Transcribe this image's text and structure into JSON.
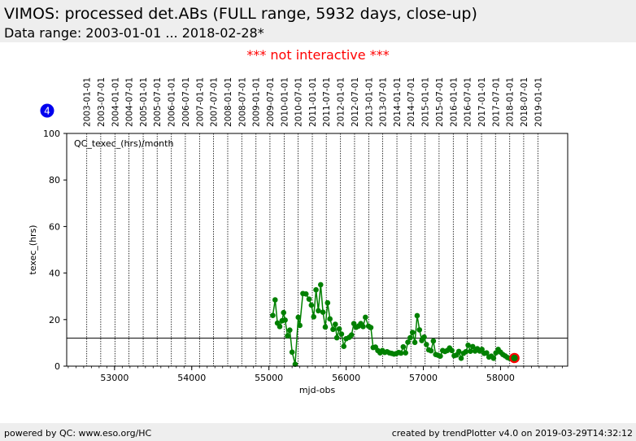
{
  "header": {
    "title": "VIMOS: processed det.ABs (FULL range, 5932 days, close-up)",
    "subtitle": "Data range: 2003-01-01 ... 2018-02-28*"
  },
  "notice": {
    "text": "*** not interactive ***",
    "color": "#ff0000"
  },
  "footer": {
    "left": "powered by QC: www.eso.org/HC",
    "right": "created by trendPlotter v4.0 on 2019-03-29T14:32:12"
  },
  "badge": {
    "text": "4",
    "color": "#0000ee"
  },
  "chart_data": {
    "type": "line",
    "plot_label": "QC_texec_(hrs)/month",
    "xlabel": "mjd-obs",
    "ylabel": "texec_(hrs)",
    "xlim": [
      52380,
      58870
    ],
    "ylim": [
      0,
      100
    ],
    "x_ticks": [
      53000,
      54000,
      55000,
      56000,
      57000,
      58000
    ],
    "y_ticks": [
      0,
      20,
      40,
      60,
      80,
      100
    ],
    "reference_line_y": 12,
    "date_markers": [
      {
        "label": "2003-01-01",
        "mjd": 52640
      },
      {
        "label": "2003-07-01",
        "mjd": 52821
      },
      {
        "label": "2004-01-01",
        "mjd": 53005
      },
      {
        "label": "2004-07-01",
        "mjd": 53187
      },
      {
        "label": "2005-01-01",
        "mjd": 53371
      },
      {
        "label": "2005-07-01",
        "mjd": 53552
      },
      {
        "label": "2006-01-01",
        "mjd": 53736
      },
      {
        "label": "2006-07-01",
        "mjd": 53917
      },
      {
        "label": "2007-01-01",
        "mjd": 54101
      },
      {
        "label": "2007-07-01",
        "mjd": 54282
      },
      {
        "label": "2008-01-01",
        "mjd": 54466
      },
      {
        "label": "2008-07-01",
        "mjd": 54648
      },
      {
        "label": "2009-01-01",
        "mjd": 54832
      },
      {
        "label": "2009-07-01",
        "mjd": 55013
      },
      {
        "label": "2010-01-01",
        "mjd": 55197
      },
      {
        "label": "2010-07-01",
        "mjd": 55378
      },
      {
        "label": "2011-01-01",
        "mjd": 55562
      },
      {
        "label": "2011-07-01",
        "mjd": 55743
      },
      {
        "label": "2012-01-01",
        "mjd": 55927
      },
      {
        "label": "2012-07-01",
        "mjd": 56109
      },
      {
        "label": "2013-01-01",
        "mjd": 56293
      },
      {
        "label": "2013-07-01",
        "mjd": 56474
      },
      {
        "label": "2014-01-01",
        "mjd": 56658
      },
      {
        "label": "2014-07-01",
        "mjd": 56839
      },
      {
        "label": "2015-01-01",
        "mjd": 57023
      },
      {
        "label": "2015-07-01",
        "mjd": 57204
      },
      {
        "label": "2016-01-01",
        "mjd": 57388
      },
      {
        "label": "2016-07-01",
        "mjd": 57570
      },
      {
        "label": "2017-01-01",
        "mjd": 57754
      },
      {
        "label": "2017-07-01",
        "mjd": 57935
      },
      {
        "label": "2018-01-01",
        "mjd": 58119
      },
      {
        "label": "2018-07-01",
        "mjd": 58300
      },
      {
        "label": "2019-01-01",
        "mjd": 58484
      }
    ],
    "series": [
      {
        "color": "#008000",
        "points": [
          [
            55050,
            21.8
          ],
          [
            55080,
            28.5
          ],
          [
            55110,
            18.5
          ],
          [
            55140,
            17.0
          ],
          [
            55170,
            19.5
          ],
          [
            55190,
            23.0
          ],
          [
            55210,
            19.8
          ],
          [
            55240,
            13.0
          ],
          [
            55270,
            15.5
          ],
          [
            55300,
            6.0
          ],
          [
            55340,
            0.8
          ],
          [
            55380,
            21.0
          ],
          [
            55400,
            17.5
          ],
          [
            55440,
            31.2
          ],
          [
            55480,
            31.0
          ],
          [
            55520,
            28.8
          ],
          [
            55550,
            26.2
          ],
          [
            55580,
            21.2
          ],
          [
            55610,
            32.8
          ],
          [
            55640,
            23.8
          ],
          [
            55670,
            35.0
          ],
          [
            55700,
            23.2
          ],
          [
            55730,
            16.8
          ],
          [
            55760,
            27.2
          ],
          [
            55790,
            20.3
          ],
          [
            55830,
            15.8
          ],
          [
            55860,
            18.0
          ],
          [
            55880,
            12.2
          ],
          [
            55910,
            16.0
          ],
          [
            55940,
            13.8
          ],
          [
            55970,
            8.5
          ],
          [
            56000,
            11.8
          ],
          [
            56040,
            12.4
          ],
          [
            56070,
            13.4
          ],
          [
            56100,
            18.3
          ],
          [
            56130,
            16.7
          ],
          [
            56160,
            17.2
          ],
          [
            56190,
            18.3
          ],
          [
            56220,
            17.0
          ],
          [
            56250,
            21.0
          ],
          [
            56290,
            17.2
          ],
          [
            56320,
            16.6
          ],
          [
            56350,
            8.0
          ],
          [
            56380,
            8.2
          ],
          [
            56410,
            6.7
          ],
          [
            56440,
            5.7
          ],
          [
            56470,
            6.7
          ],
          [
            56500,
            5.9
          ],
          [
            56530,
            6.2
          ],
          [
            56560,
            5.7
          ],
          [
            56590,
            5.5
          ],
          [
            56620,
            5.2
          ],
          [
            56650,
            5.4
          ],
          [
            56680,
            5.9
          ],
          [
            56710,
            5.6
          ],
          [
            56740,
            8.3
          ],
          [
            56770,
            5.7
          ],
          [
            56800,
            10.3
          ],
          [
            56830,
            12.2
          ],
          [
            56860,
            14.5
          ],
          [
            56890,
            10.2
          ],
          [
            56920,
            21.7
          ],
          [
            56950,
            15.6
          ],
          [
            56980,
            11.0
          ],
          [
            57010,
            12.5
          ],
          [
            57040,
            9.3
          ],
          [
            57070,
            7.0
          ],
          [
            57100,
            6.6
          ],
          [
            57130,
            10.8
          ],
          [
            57160,
            5.0
          ],
          [
            57190,
            4.7
          ],
          [
            57220,
            4.3
          ],
          [
            57250,
            6.7
          ],
          [
            57280,
            6.3
          ],
          [
            57310,
            6.7
          ],
          [
            57340,
            7.8
          ],
          [
            57370,
            6.7
          ],
          [
            57400,
            4.5
          ],
          [
            57430,
            4.8
          ],
          [
            57460,
            6.3
          ],
          [
            57490,
            3.4
          ],
          [
            57520,
            5.5
          ],
          [
            57550,
            6.2
          ],
          [
            57580,
            9.0
          ],
          [
            57610,
            6.4
          ],
          [
            57640,
            8.4
          ],
          [
            57670,
            6.5
          ],
          [
            57700,
            7.5
          ],
          [
            57730,
            6.5
          ],
          [
            57760,
            7.2
          ],
          [
            57790,
            5.5
          ],
          [
            57820,
            5.7
          ],
          [
            57850,
            3.9
          ],
          [
            57880,
            4.3
          ],
          [
            57910,
            3.4
          ],
          [
            57940,
            5.7
          ],
          [
            57970,
            7.2
          ],
          [
            58000,
            6.0
          ],
          [
            58030,
            5.0
          ],
          [
            58060,
            4.4
          ],
          [
            58090,
            3.7
          ],
          [
            58120,
            3.3
          ],
          [
            58150,
            3.9
          ],
          [
            58180,
            3.5
          ]
        ]
      }
    ],
    "highlight_point": {
      "x": 58180,
      "y": 3.5,
      "color": "#ff0000"
    }
  }
}
